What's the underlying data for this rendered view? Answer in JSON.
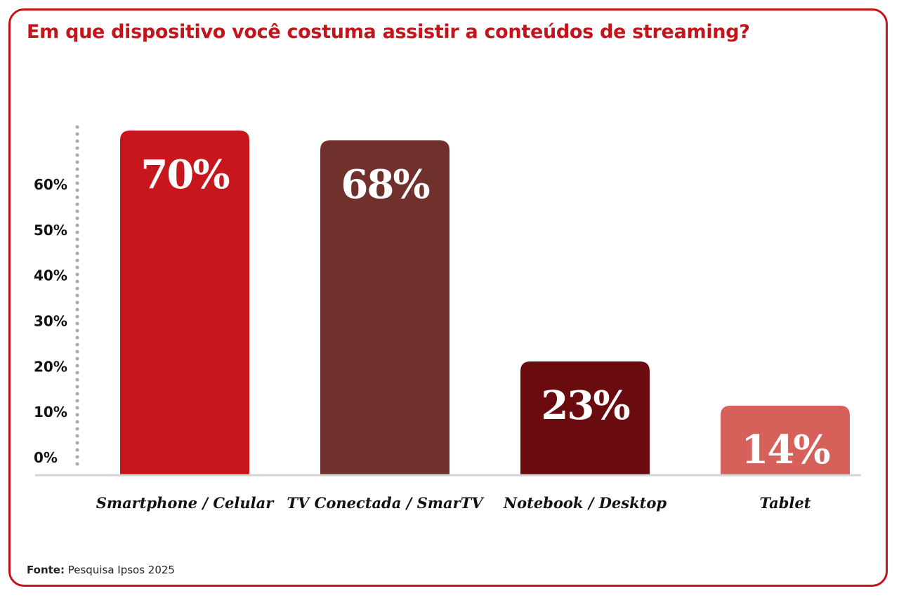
{
  "title": "Em que dispositivo você costuma assistir a conteúdos de streaming?",
  "source": {
    "label": "Fonte:",
    "text": "Pesquisa Ipsos 2025"
  },
  "chart_data": {
    "type": "bar",
    "title": "Em que dispositivo você costuma assistir a conteúdos de streaming?",
    "categories": [
      "Smartphone / Celular",
      "TV Conectada / SmarTV",
      "Notebook / Desktop",
      "Tablet"
    ],
    "values": [
      70,
      68,
      23,
      14
    ],
    "value_labels": [
      "70%",
      "68%",
      "23%",
      "14%"
    ],
    "colors": [
      "#c8171c",
      "#70312d",
      "#6a0c0f",
      "#d6605a"
    ],
    "yticks": [
      0,
      10,
      20,
      30,
      40,
      50,
      60
    ],
    "ytick_labels": [
      "0%",
      "10%",
      "20%",
      "30%",
      "40%",
      "50%",
      "60%"
    ],
    "ylim": [
      0,
      70
    ],
    "grid": false,
    "legend": "none",
    "xlabel": "",
    "ylabel": ""
  }
}
